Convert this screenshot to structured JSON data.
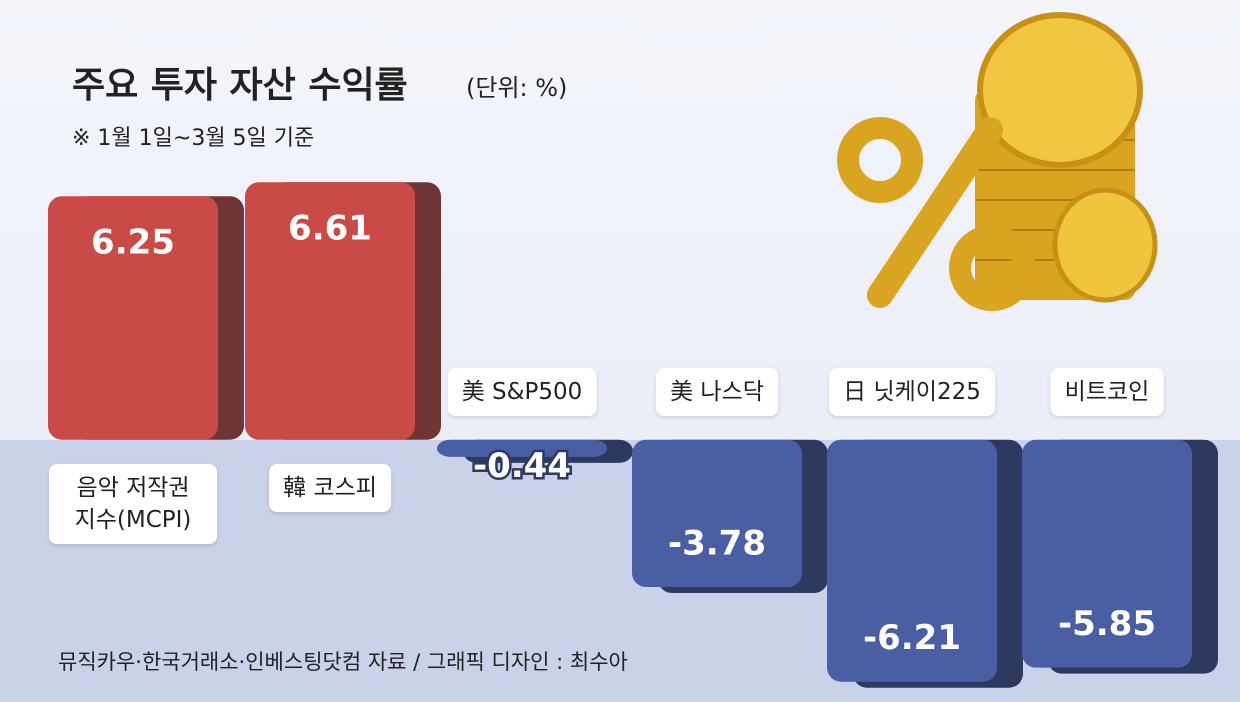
{
  "title": "주요 투자 자산 수익률",
  "unit": "(단위: %)",
  "note": "※ 1월 1일~3월 5일 기준",
  "source": "뮤직카우·한국거래소·인베스팅닷컴 자료 / 그래픽 디자인 : 최수아",
  "chart_data": {
    "type": "bar",
    "categories": [
      "음악 저작권 지수(MCPI)",
      "韓 코스피",
      "美 S&P500",
      "美 나스닥",
      "日 닛케이225",
      "비트코인"
    ],
    "values": [
      6.25,
      6.61,
      -0.44,
      -3.78,
      -6.21,
      -5.85
    ],
    "colors": [
      "#c94a47",
      "#c94a47",
      "#4a5fa3",
      "#4a5fa3",
      "#4a5fa3",
      "#4a5fa3"
    ],
    "ylim": [
      -6.5,
      7
    ]
  }
}
